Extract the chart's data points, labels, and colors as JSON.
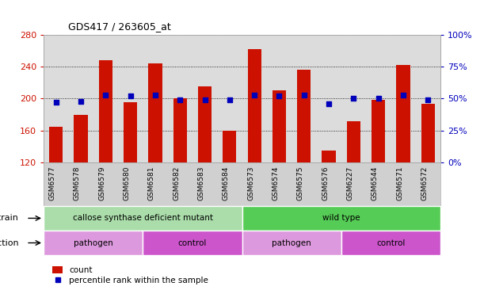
{
  "title": "GDS417 / 263605_at",
  "samples": [
    "GSM6577",
    "GSM6578",
    "GSM6579",
    "GSM6580",
    "GSM6581",
    "GSM6582",
    "GSM6583",
    "GSM6584",
    "GSM6573",
    "GSM6574",
    "GSM6575",
    "GSM6576",
    "GSM6227",
    "GSM6544",
    "GSM6571",
    "GSM6572"
  ],
  "counts": [
    165,
    180,
    248,
    195,
    244,
    200,
    215,
    160,
    262,
    210,
    236,
    135,
    172,
    198,
    242,
    193
  ],
  "percentiles": [
    47,
    48,
    53,
    52,
    53,
    49,
    49,
    49,
    53,
    52,
    53,
    46,
    50,
    50,
    53,
    49
  ],
  "ylim_left": [
    120,
    280
  ],
  "ylim_right": [
    0,
    100
  ],
  "yticks_left": [
    120,
    160,
    200,
    240,
    280
  ],
  "yticks_right": [
    0,
    25,
    50,
    75,
    100
  ],
  "bar_color": "#cc1100",
  "dot_color": "#0000bb",
  "grid_color": "#000000",
  "plot_bg": "#dcdcdc",
  "strain_labels": [
    {
      "text": "callose synthase deficient mutant",
      "start": 0,
      "end": 8,
      "color": "#aaddaa"
    },
    {
      "text": "wild type",
      "start": 8,
      "end": 16,
      "color": "#55cc55"
    }
  ],
  "infection_labels": [
    {
      "text": "pathogen",
      "start": 0,
      "end": 4,
      "color": "#dd99dd"
    },
    {
      "text": "control",
      "start": 4,
      "end": 8,
      "color": "#cc55cc"
    },
    {
      "text": "pathogen",
      "start": 8,
      "end": 12,
      "color": "#dd99dd"
    },
    {
      "text": "control",
      "start": 12,
      "end": 16,
      "color": "#cc55cc"
    }
  ],
  "left_tick_color": "#cc1100",
  "right_tick_color": "#0000bb",
  "legend_items": [
    {
      "label": "count",
      "color": "#cc1100",
      "marker": "s"
    },
    {
      "label": "percentile rank within the sample",
      "color": "#0000bb",
      "marker": "s"
    }
  ]
}
